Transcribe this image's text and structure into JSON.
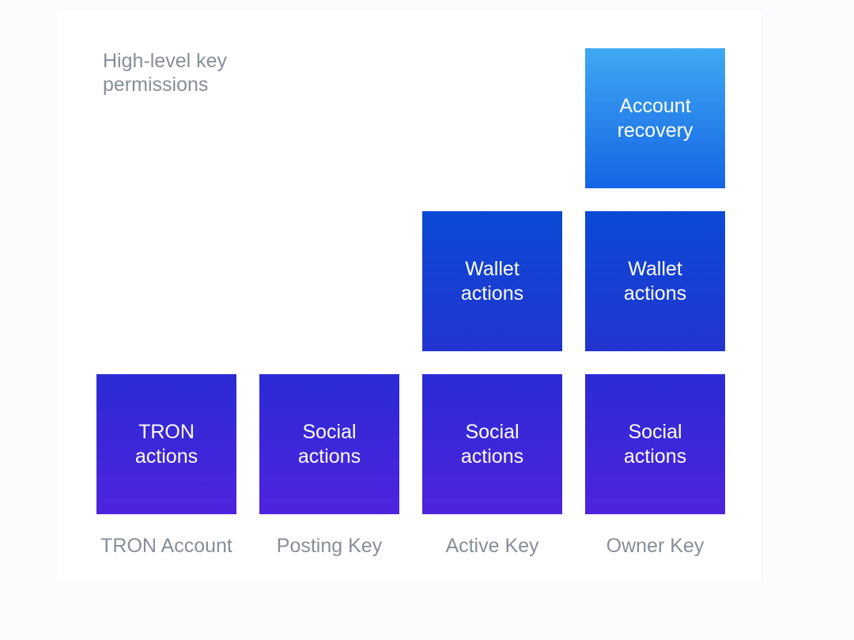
{
  "header": {
    "title": "High-level key permissions"
  },
  "colors": {
    "background": "#fbfbfd",
    "panel": "#ffffff",
    "muted_text": "#868e98",
    "box_text": "#ffffff",
    "gradients": {
      "recovery": {
        "from": "#3fa9f2",
        "to": "#1464e4"
      },
      "wallet": {
        "from": "#0a4ad5",
        "to": "#2334d0"
      },
      "social": {
        "from": "#2b2ad4",
        "to": "#4f23de"
      }
    }
  },
  "columns": [
    {
      "label": "TRON Account",
      "boxes": [
        {
          "lines": [
            "TRON",
            "actions"
          ],
          "gradient": "social"
        }
      ]
    },
    {
      "label": "Posting Key",
      "boxes": [
        {
          "lines": [
            "Social",
            "actions"
          ],
          "gradient": "social"
        }
      ]
    },
    {
      "label": "Active Key",
      "boxes": [
        {
          "lines": [
            "Wallet",
            "actions"
          ],
          "gradient": "wallet"
        },
        {
          "lines": [
            "Social",
            "actions"
          ],
          "gradient": "social"
        }
      ]
    },
    {
      "label": "Owner Key",
      "boxes": [
        {
          "lines": [
            "Account",
            "recovery"
          ],
          "gradient": "recovery"
        },
        {
          "lines": [
            "Wallet",
            "actions"
          ],
          "gradient": "wallet"
        },
        {
          "lines": [
            "Social",
            "actions"
          ],
          "gradient": "social"
        }
      ]
    }
  ]
}
